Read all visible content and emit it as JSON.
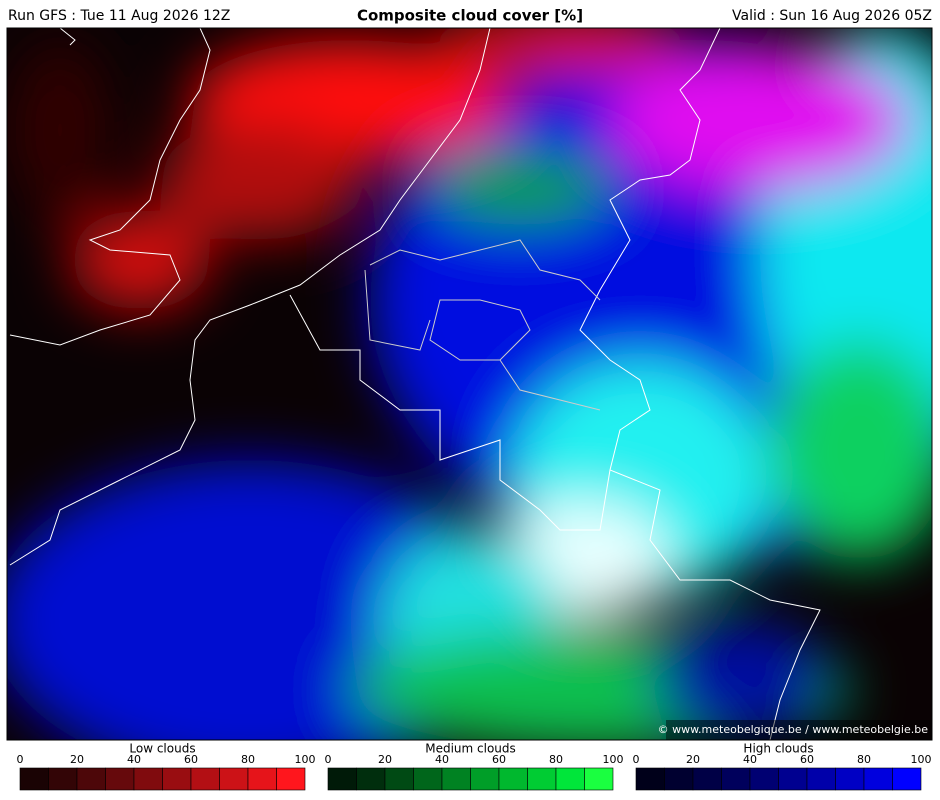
{
  "header": {
    "run": "Run GFS : Tue 11 Aug 2026 12Z",
    "title": "Composite cloud cover [%]",
    "valid": "Valid : Sun 16 Aug 2026 05Z"
  },
  "map": {
    "credit": "© www.meteobelgique.be / www.meteobelgie.be"
  },
  "legends": [
    {
      "label": "Low clouds",
      "ticks": [
        0,
        20,
        40,
        60,
        80,
        100
      ],
      "colors": [
        "#1a0304",
        "#330506",
        "#4d0709",
        "#66090c",
        "#800b0e",
        "#990d11",
        "#b30f14",
        "#cc1217",
        "#e6141a",
        "#ff161d"
      ]
    },
    {
      "label": "Medium clouds",
      "ticks": [
        0,
        20,
        40,
        60,
        80,
        100
      ],
      "colors": [
        "#001a08",
        "#002e0d",
        "#004a14",
        "#00661b",
        "#008222",
        "#009e28",
        "#00b82e",
        "#00cc33",
        "#00e63a",
        "#1aff40"
      ]
    },
    {
      "label": "High clouds",
      "ticks": [
        0,
        20,
        40,
        60,
        80,
        100
      ],
      "colors": [
        "#00001a",
        "#000030",
        "#000046",
        "#00005c",
        "#000072",
        "#000090",
        "#0000aa",
        "#0000c4",
        "#0000de",
        "#0000ff"
      ]
    }
  ]
}
